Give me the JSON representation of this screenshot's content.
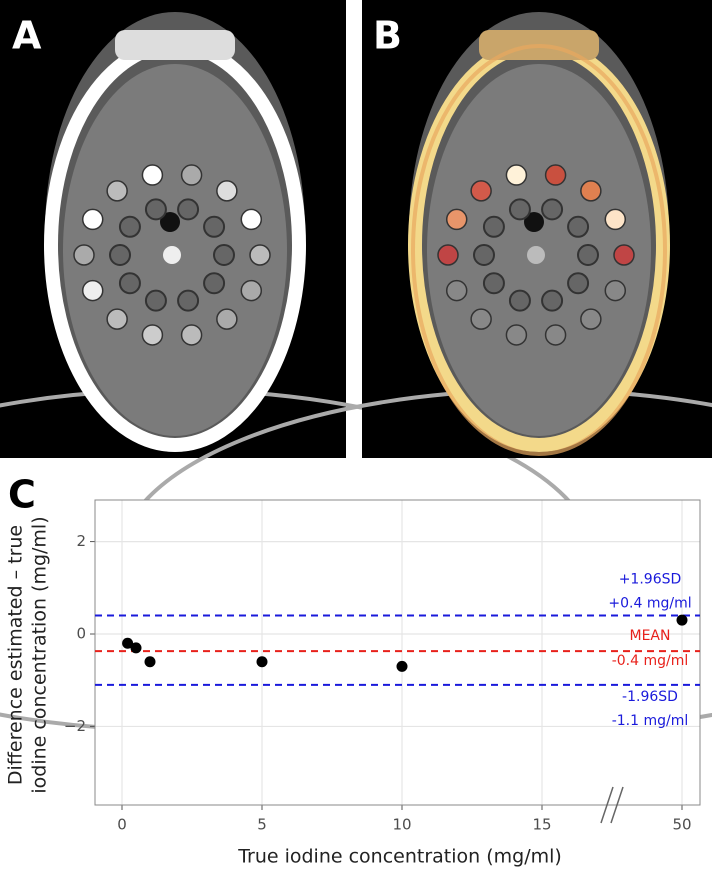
{
  "figure_labels": [
    "A",
    "B"
  ],
  "chart_data": {
    "type": "scatter",
    "panel_label": "C",
    "x_label": "True iodine concentration (mg/ml)",
    "y_label": [
      "Difference estimated – true",
      "iodine concentration (mg/ml)"
    ],
    "x": [
      0.2,
      0.5,
      1,
      5,
      10,
      50
    ],
    "values": [
      -0.2,
      -0.3,
      -0.6,
      -0.6,
      -0.7,
      0.3
    ],
    "color": "#000000",
    "xlim": [
      -1,
      54.5
    ],
    "xticks": [
      0,
      5,
      10,
      15,
      50
    ],
    "x_break": true,
    "ylim": [
      -3.7,
      2.9
    ],
    "yticks": [
      {
        "value": -2,
        "label": "−2"
      },
      0,
      2
    ],
    "grid": true,
    "reference_lines": [
      {
        "value": 0.4,
        "color": "#1a1adb",
        "labels": [
          "+1.96SD",
          "+0.4 mg/ml"
        ]
      },
      {
        "value": -0.37,
        "color": "#e8211b",
        "labels": [
          "MEAN",
          "-0.4 mg/ml"
        ]
      },
      {
        "value": -1.1,
        "color": "#1a1adb",
        "labels": [
          "-1.96SD",
          "-1.1 mg/ml"
        ]
      }
    ]
  }
}
